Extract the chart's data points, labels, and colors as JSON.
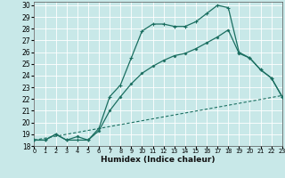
{
  "xlabel": "Humidex (Indice chaleur)",
  "bg_color": "#c8e8e8",
  "line_color": "#1a6e60",
  "grid_color": "#b0d8d8",
  "xlim": [
    0,
    23
  ],
  "ylim": [
    18,
    30.3
  ],
  "yticks": [
    18,
    19,
    20,
    21,
    22,
    23,
    24,
    25,
    26,
    27,
    28,
    29,
    30
  ],
  "xticks": [
    0,
    1,
    2,
    3,
    4,
    5,
    6,
    7,
    8,
    9,
    10,
    11,
    12,
    13,
    14,
    15,
    16,
    17,
    18,
    19,
    20,
    21,
    22,
    23
  ],
  "line1_x": [
    0,
    1,
    2,
    3,
    4,
    5,
    6,
    7,
    8,
    9,
    10,
    11,
    12,
    13,
    14,
    15,
    16,
    17,
    18,
    19,
    20,
    21,
    22,
    23
  ],
  "line1_y": [
    18.5,
    18.5,
    19.0,
    18.5,
    18.5,
    18.5,
    19.5,
    22.2,
    23.2,
    25.5,
    27.8,
    28.4,
    28.4,
    28.2,
    28.2,
    28.6,
    29.3,
    30.0,
    29.8,
    26.0,
    25.5,
    24.5,
    23.8,
    22.2
  ],
  "line2_x": [
    0,
    1,
    2,
    3,
    4,
    5,
    6,
    7,
    8,
    9,
    10,
    11,
    12,
    13,
    14,
    15,
    16,
    17,
    18,
    19,
    20,
    21,
    22,
    23
  ],
  "line2_y": [
    18.5,
    18.5,
    19.0,
    18.5,
    18.8,
    18.5,
    19.3,
    21.0,
    22.2,
    23.3,
    24.2,
    24.8,
    25.3,
    25.7,
    25.9,
    26.3,
    26.8,
    27.3,
    27.9,
    25.9,
    25.5,
    24.5,
    23.8,
    22.2
  ],
  "line3_x": [
    0,
    23
  ],
  "line3_y": [
    18.5,
    22.3
  ]
}
